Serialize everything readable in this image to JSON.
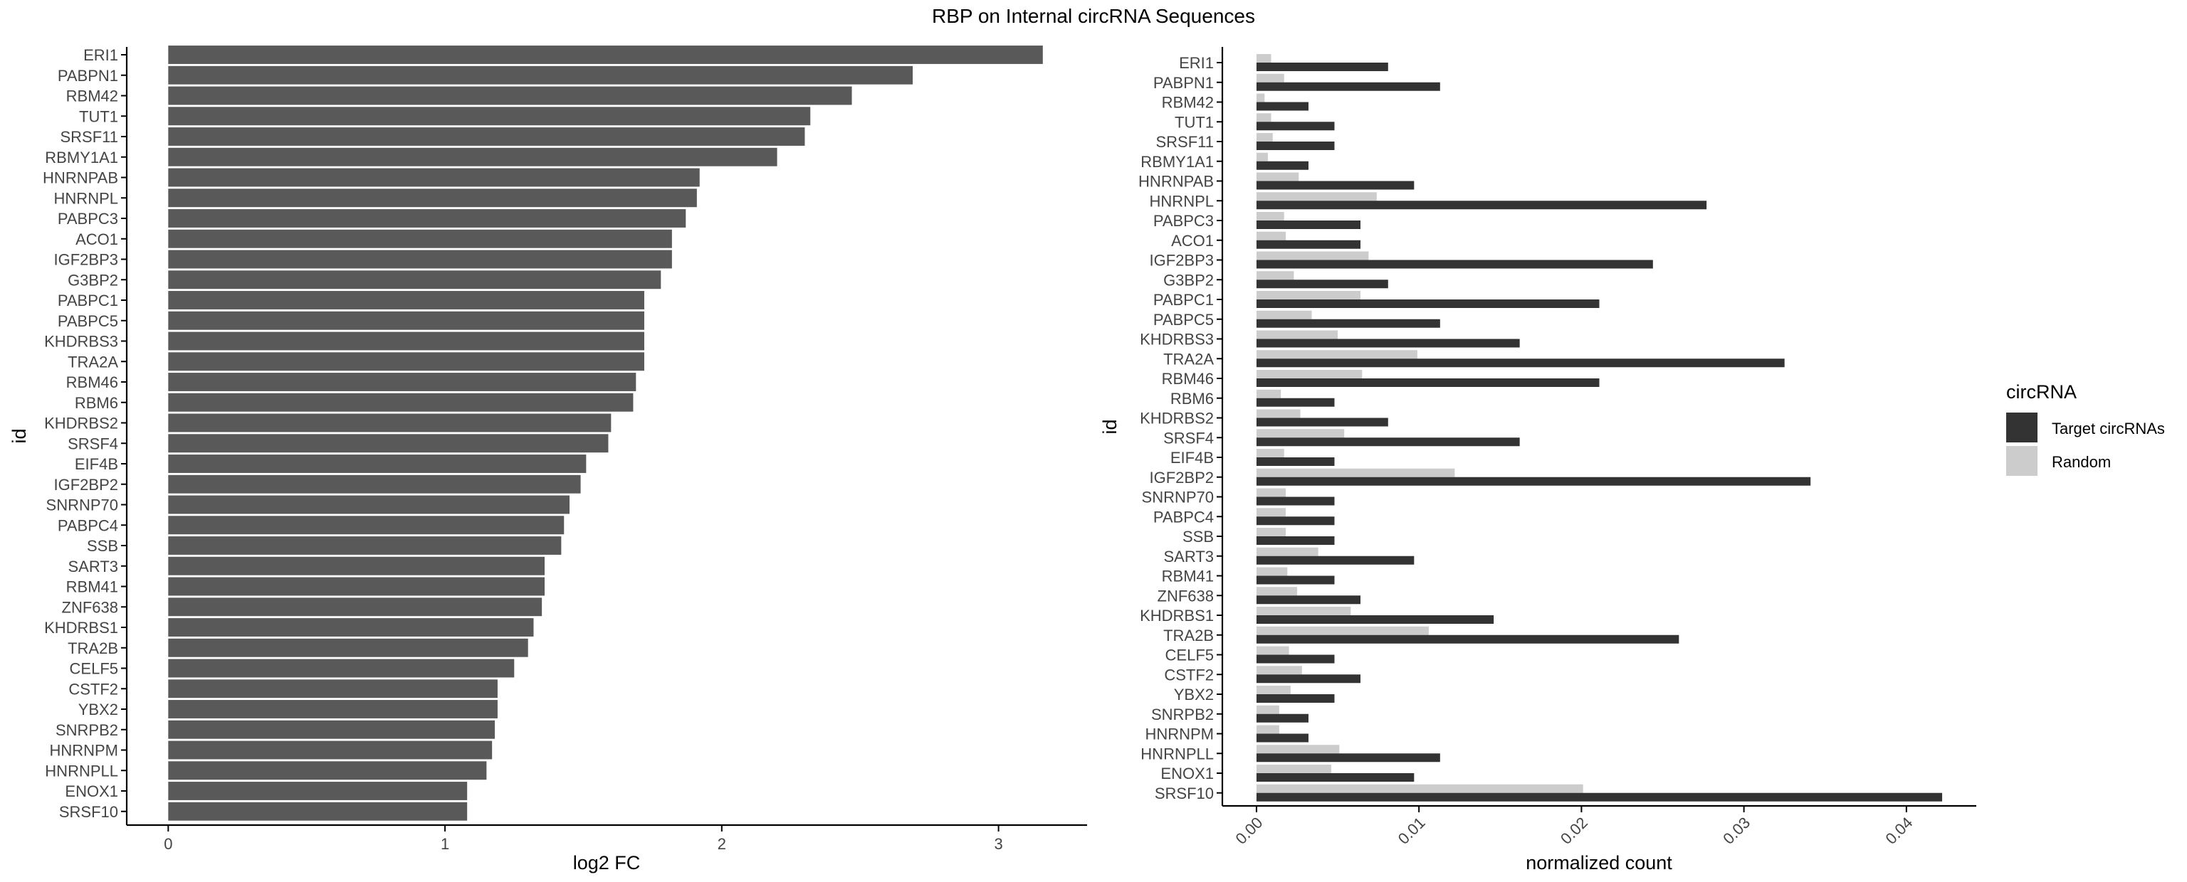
{
  "figure_title": "RBP on Internal circRNA Sequences",
  "chart_data": [
    {
      "type": "bar",
      "orientation": "horizontal",
      "title": "",
      "xlabel": "log2 FC",
      "ylabel": "id",
      "xlim": [
        -0.15,
        3.32
      ],
      "xticks": [
        "0",
        "1",
        "2",
        "3"
      ],
      "xtick_values": [
        0,
        1,
        2,
        3
      ],
      "grid": false,
      "bar_color": "#595959",
      "categories": [
        "ERI1",
        "PABPN1",
        "RBM42",
        "TUT1",
        "SRSF11",
        "RBMY1A1",
        "HNRNPAB",
        "HNRNPL",
        "PABPC3",
        "ACO1",
        "IGF2BP3",
        "G3BP2",
        "PABPC1",
        "PABPC5",
        "KHDRBS3",
        "TRA2A",
        "RBM46",
        "RBM6",
        "KHDRBS2",
        "SRSF4",
        "EIF4B",
        "IGF2BP2",
        "SNRNP70",
        "PABPC4",
        "SSB",
        "SART3",
        "RBM41",
        "ZNF638",
        "KHDRBS1",
        "TRA2B",
        "CELF5",
        "CSTF2",
        "YBX2",
        "SNRPB2",
        "HNRNPM",
        "HNRNPLL",
        "ENOX1",
        "SRSF10"
      ],
      "values": [
        3.16,
        2.69,
        2.47,
        2.32,
        2.3,
        2.2,
        1.92,
        1.91,
        1.87,
        1.82,
        1.82,
        1.78,
        1.72,
        1.72,
        1.72,
        1.72,
        1.69,
        1.68,
        1.6,
        1.59,
        1.51,
        1.49,
        1.45,
        1.43,
        1.42,
        1.36,
        1.36,
        1.35,
        1.32,
        1.3,
        1.25,
        1.19,
        1.19,
        1.18,
        1.17,
        1.15,
        1.08,
        1.08
      ]
    },
    {
      "type": "bar",
      "orientation": "horizontal",
      "title": "",
      "xlabel": "normalized count",
      "ylabel": "id",
      "xlim": [
        -0.0021,
        0.0443
      ],
      "xticks": [
        "0.00",
        "0.01",
        "0.02",
        "0.03",
        "0.04"
      ],
      "xtick_values": [
        0,
        0.01,
        0.02,
        0.03,
        0.04
      ],
      "grid": false,
      "legend": {
        "title": "circRNA",
        "placement": "right",
        "entries": [
          {
            "label": "Target circRNAs",
            "color": "#333333"
          },
          {
            "label": "Random",
            "color": "#cccccc"
          }
        ]
      },
      "categories": [
        "ERI1",
        "PABPN1",
        "RBM42",
        "TUT1",
        "SRSF11",
        "RBMY1A1",
        "HNRNPAB",
        "HNRNPL",
        "PABPC3",
        "ACO1",
        "IGF2BP3",
        "G3BP2",
        "PABPC1",
        "PABPC5",
        "KHDRBS3",
        "TRA2A",
        "RBM46",
        "RBM6",
        "KHDRBS2",
        "SRSF4",
        "EIF4B",
        "IGF2BP2",
        "SNRNP70",
        "PABPC4",
        "SSB",
        "SART3",
        "RBM41",
        "ZNF638",
        "KHDRBS1",
        "TRA2B",
        "CELF5",
        "CSTF2",
        "YBX2",
        "SNRPB2",
        "HNRNPM",
        "HNRNPLL",
        "ENOX1",
        "SRSF10"
      ],
      "series": [
        {
          "name": "Target circRNAs",
          "color": "#333333",
          "values": [
            0.0081,
            0.0113,
            0.0032,
            0.0048,
            0.0048,
            0.0032,
            0.0097,
            0.0277,
            0.0064,
            0.0064,
            0.0244,
            0.0081,
            0.0211,
            0.0113,
            0.0162,
            0.0325,
            0.0211,
            0.0048,
            0.0081,
            0.0162,
            0.0048,
            0.0341,
            0.0048,
            0.0048,
            0.0048,
            0.0097,
            0.0048,
            0.0064,
            0.0146,
            0.026,
            0.0048,
            0.0064,
            0.0048,
            0.0032,
            0.0032,
            0.0113,
            0.0097,
            0.0422
          ]
        },
        {
          "name": "Random",
          "color": "#cccccc",
          "values": [
            0.0009,
            0.0017,
            0.0005,
            0.0009,
            0.001,
            0.0007,
            0.0026,
            0.0074,
            0.0017,
            0.0018,
            0.0069,
            0.0023,
            0.0064,
            0.0034,
            0.005,
            0.0099,
            0.0065,
            0.0015,
            0.0027,
            0.0054,
            0.0017,
            0.0122,
            0.0018,
            0.0018,
            0.0018,
            0.0038,
            0.0019,
            0.0025,
            0.0058,
            0.0106,
            0.002,
            0.0028,
            0.0021,
            0.0014,
            0.0014,
            0.0051,
            0.0046,
            0.0201
          ]
        }
      ]
    }
  ]
}
